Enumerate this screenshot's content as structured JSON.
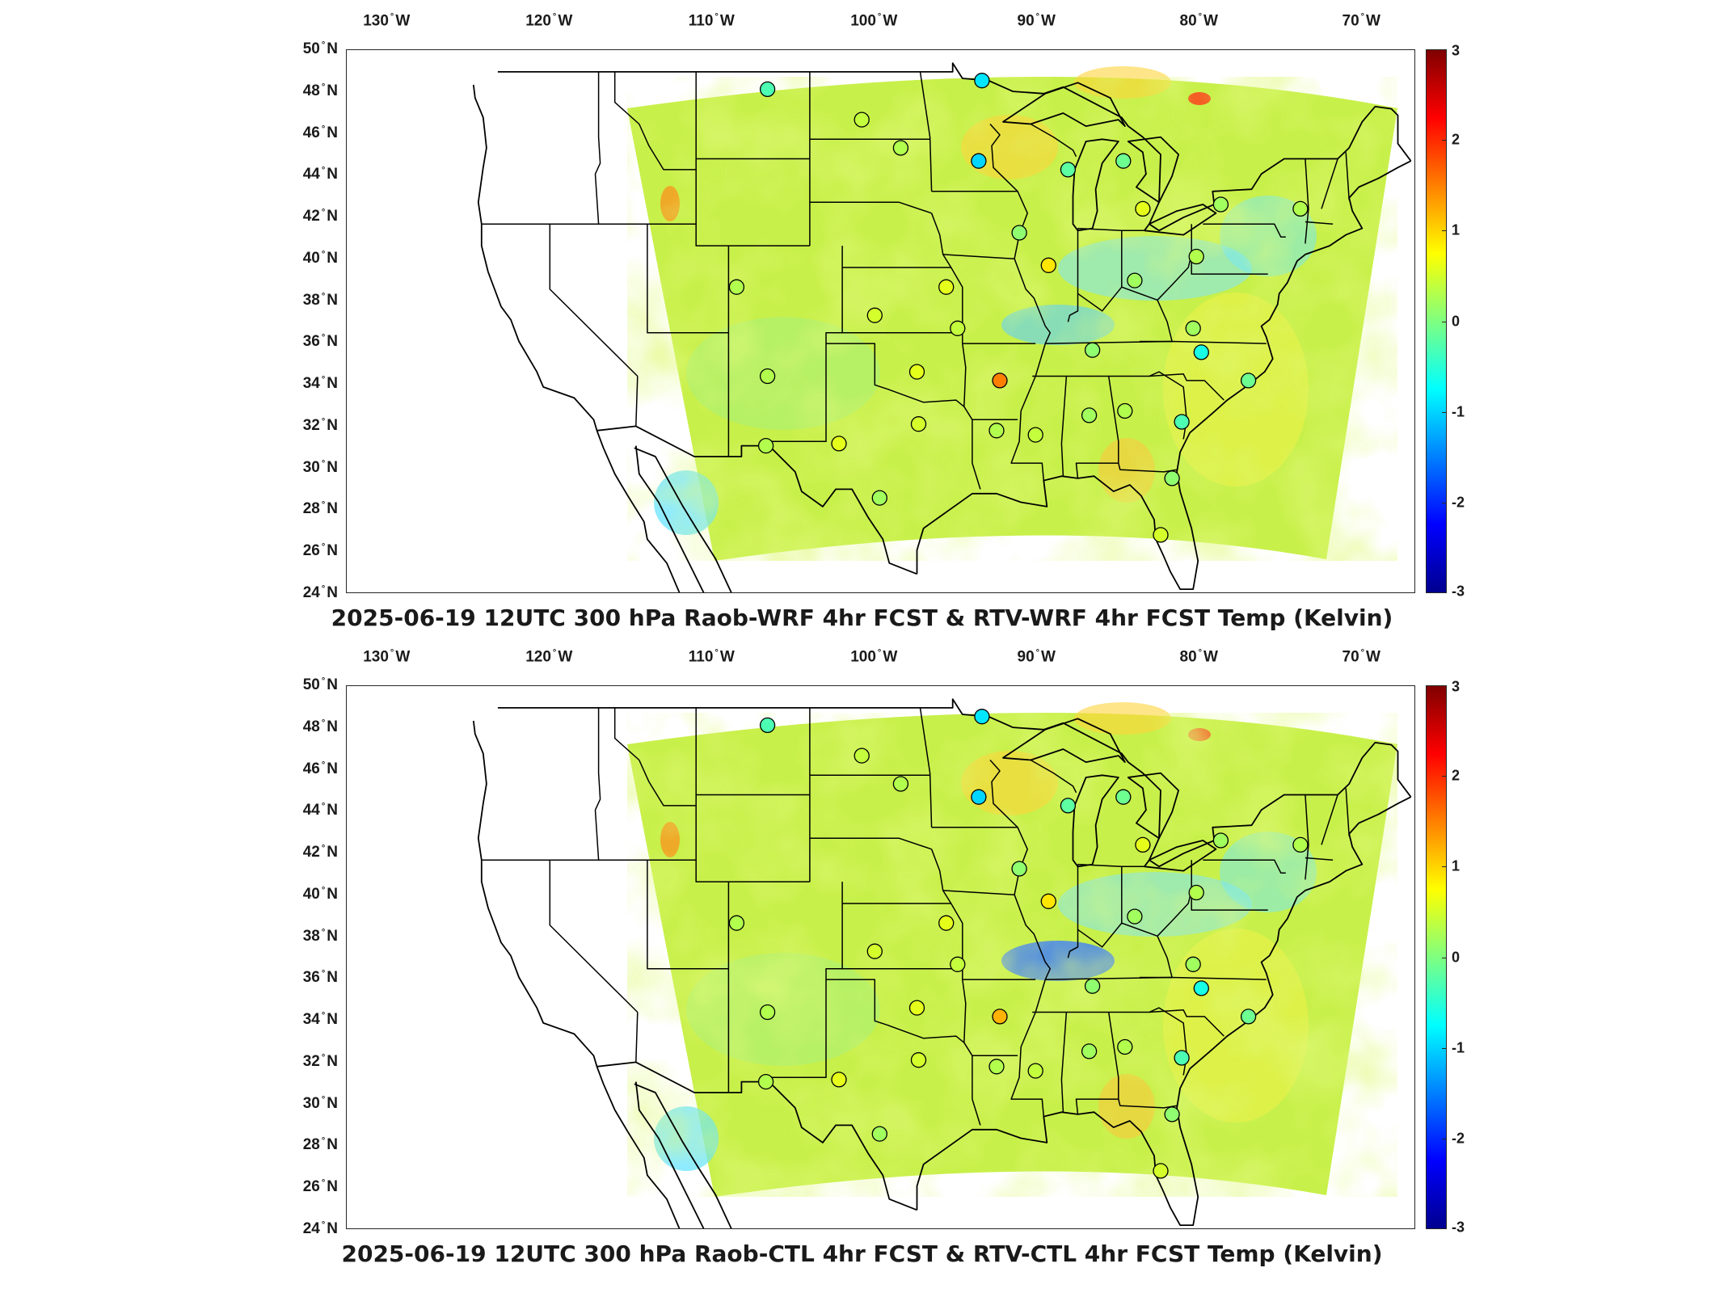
{
  "panels": [
    {
      "title": "2025-06-19 12UTC 300 hPa Raob-WRF 4hr FCST & RTV-WRF 4hr FCST Temp (Kelvin)",
      "lon_labels": [
        {
          "deg": "130",
          "dir": "W"
        },
        {
          "deg": "120",
          "dir": "W"
        },
        {
          "deg": "110",
          "dir": "W"
        },
        {
          "deg": "100",
          "dir": "W"
        },
        {
          "deg": "90",
          "dir": "W"
        },
        {
          "deg": "80",
          "dir": "W"
        },
        {
          "deg": "70",
          "dir": "W"
        }
      ],
      "lat_labels": [
        {
          "deg": "50",
          "dir": "N"
        },
        {
          "deg": "48",
          "dir": "N"
        },
        {
          "deg": "46",
          "dir": "N"
        },
        {
          "deg": "44",
          "dir": "N"
        },
        {
          "deg": "42",
          "dir": "N"
        },
        {
          "deg": "40",
          "dir": "N"
        },
        {
          "deg": "38",
          "dir": "N"
        },
        {
          "deg": "36",
          "dir": "N"
        },
        {
          "deg": "34",
          "dir": "N"
        },
        {
          "deg": "32",
          "dir": "N"
        },
        {
          "deg": "30",
          "dir": "N"
        },
        {
          "deg": "28",
          "dir": "N"
        },
        {
          "deg": "26",
          "dir": "N"
        },
        {
          "deg": "24",
          "dir": "N"
        }
      ],
      "colorbar_ticks": [
        "3",
        "2",
        "1",
        "0",
        "-1",
        "-2",
        "-3"
      ],
      "stations": [
        {
          "lon": -106.6,
          "lat": 48.2,
          "v": -0.3
        },
        {
          "lon": -93.4,
          "lat": 48.6,
          "v": -0.9
        },
        {
          "lon": -100.8,
          "lat": 46.8,
          "v": 0.4
        },
        {
          "lon": -98.4,
          "lat": 45.5,
          "v": 0.3
        },
        {
          "lon": -93.6,
          "lat": 44.9,
          "v": -1.0
        },
        {
          "lon": -88.1,
          "lat": 44.5,
          "v": -0.2
        },
        {
          "lon": -84.7,
          "lat": 44.9,
          "v": -0.1
        },
        {
          "lon": -83.5,
          "lat": 42.7,
          "v": 0.6
        },
        {
          "lon": -78.7,
          "lat": 42.9,
          "v": 0.2
        },
        {
          "lon": -73.8,
          "lat": 42.7,
          "v": 0.3
        },
        {
          "lon": -91.1,
          "lat": 41.6,
          "v": 0.1
        },
        {
          "lon": -89.3,
          "lat": 40.1,
          "v": 0.9
        },
        {
          "lon": -80.2,
          "lat": 40.5,
          "v": 0.3
        },
        {
          "lon": -84.0,
          "lat": 39.4,
          "v": 0.2
        },
        {
          "lon": -95.6,
          "lat": 39.1,
          "v": 0.6
        },
        {
          "lon": -108.5,
          "lat": 39.1,
          "v": 0.3
        },
        {
          "lon": -100.0,
          "lat": 37.8,
          "v": 0.5
        },
        {
          "lon": -94.9,
          "lat": 37.2,
          "v": 0.4
        },
        {
          "lon": -80.4,
          "lat": 37.2,
          "v": 0.2
        },
        {
          "lon": -86.6,
          "lat": 36.2,
          "v": 0.1
        },
        {
          "lon": -79.9,
          "lat": 36.1,
          "v": -0.6
        },
        {
          "lon": -97.4,
          "lat": 35.2,
          "v": 0.6
        },
        {
          "lon": -106.6,
          "lat": 35.0,
          "v": 0.3
        },
        {
          "lon": -92.3,
          "lat": 34.8,
          "v": 1.5
        },
        {
          "lon": -77.0,
          "lat": 34.8,
          "v": -0.1
        },
        {
          "lon": -86.8,
          "lat": 33.2,
          "v": 0.2
        },
        {
          "lon": -84.6,
          "lat": 33.4,
          "v": 0.3
        },
        {
          "lon": -97.3,
          "lat": 32.8,
          "v": 0.5
        },
        {
          "lon": -90.1,
          "lat": 32.3,
          "v": 0.4
        },
        {
          "lon": -102.2,
          "lat": 31.9,
          "v": 0.6
        },
        {
          "lon": -106.7,
          "lat": 31.8,
          "v": 0.3
        },
        {
          "lon": -81.1,
          "lat": 32.9,
          "v": -0.3
        },
        {
          "lon": -92.5,
          "lat": 32.5,
          "v": 0.3
        },
        {
          "lon": -81.7,
          "lat": 30.3,
          "v": 0.1
        },
        {
          "lon": -99.7,
          "lat": 29.4,
          "v": 0.2
        },
        {
          "lon": -82.4,
          "lat": 27.7,
          "v": 0.5
        }
      ]
    },
    {
      "title": "2025-06-19 12UTC 300 hPa Raob-CTL 4hr FCST & RTV-CTL 4hr FCST Temp (Kelvin)",
      "lon_labels": [
        {
          "deg": "130",
          "dir": "W"
        },
        {
          "deg": "120",
          "dir": "W"
        },
        {
          "deg": "110",
          "dir": "W"
        },
        {
          "deg": "100",
          "dir": "W"
        },
        {
          "deg": "90",
          "dir": "W"
        },
        {
          "deg": "80",
          "dir": "W"
        },
        {
          "deg": "70",
          "dir": "W"
        }
      ],
      "lat_labels": [
        {
          "deg": "50",
          "dir": "N"
        },
        {
          "deg": "48",
          "dir": "N"
        },
        {
          "deg": "46",
          "dir": "N"
        },
        {
          "deg": "44",
          "dir": "N"
        },
        {
          "deg": "42",
          "dir": "N"
        },
        {
          "deg": "40",
          "dir": "N"
        },
        {
          "deg": "38",
          "dir": "N"
        },
        {
          "deg": "36",
          "dir": "N"
        },
        {
          "deg": "34",
          "dir": "N"
        },
        {
          "deg": "32",
          "dir": "N"
        },
        {
          "deg": "30",
          "dir": "N"
        },
        {
          "deg": "28",
          "dir": "N"
        },
        {
          "deg": "26",
          "dir": "N"
        },
        {
          "deg": "24",
          "dir": "N"
        }
      ],
      "colorbar_ticks": [
        "3",
        "2",
        "1",
        "0",
        "-1",
        "-2",
        "-3"
      ],
      "stations": [
        {
          "lon": -106.6,
          "lat": 48.2,
          "v": -0.3
        },
        {
          "lon": -93.4,
          "lat": 48.6,
          "v": -0.9
        },
        {
          "lon": -100.8,
          "lat": 46.8,
          "v": 0.4
        },
        {
          "lon": -98.4,
          "lat": 45.5,
          "v": 0.3
        },
        {
          "lon": -93.6,
          "lat": 44.9,
          "v": -1.0
        },
        {
          "lon": -88.1,
          "lat": 44.5,
          "v": -0.2
        },
        {
          "lon": -84.7,
          "lat": 44.9,
          "v": -0.1
        },
        {
          "lon": -83.5,
          "lat": 42.7,
          "v": 0.6
        },
        {
          "lon": -78.7,
          "lat": 42.9,
          "v": 0.2
        },
        {
          "lon": -73.8,
          "lat": 42.7,
          "v": 0.3
        },
        {
          "lon": -91.1,
          "lat": 41.6,
          "v": 0.1
        },
        {
          "lon": -89.3,
          "lat": 40.1,
          "v": 0.9
        },
        {
          "lon": -80.2,
          "lat": 40.5,
          "v": 0.3
        },
        {
          "lon": -84.0,
          "lat": 39.4,
          "v": 0.2
        },
        {
          "lon": -95.6,
          "lat": 39.1,
          "v": 0.6
        },
        {
          "lon": -108.5,
          "lat": 39.1,
          "v": 0.3
        },
        {
          "lon": -100.0,
          "lat": 37.8,
          "v": 0.5
        },
        {
          "lon": -94.9,
          "lat": 37.2,
          "v": 0.4
        },
        {
          "lon": -80.4,
          "lat": 37.2,
          "v": 0.2
        },
        {
          "lon": -86.6,
          "lat": 36.2,
          "v": 0.1
        },
        {
          "lon": -79.9,
          "lat": 36.1,
          "v": -0.6
        },
        {
          "lon": -97.4,
          "lat": 35.2,
          "v": 0.6
        },
        {
          "lon": -106.6,
          "lat": 35.0,
          "v": 0.3
        },
        {
          "lon": -92.3,
          "lat": 34.8,
          "v": 1.2
        },
        {
          "lon": -77.0,
          "lat": 34.8,
          "v": -0.1
        },
        {
          "lon": -86.8,
          "lat": 33.2,
          "v": 0.2
        },
        {
          "lon": -84.6,
          "lat": 33.4,
          "v": 0.3
        },
        {
          "lon": -97.3,
          "lat": 32.8,
          "v": 0.5
        },
        {
          "lon": -90.1,
          "lat": 32.3,
          "v": 0.4
        },
        {
          "lon": -102.2,
          "lat": 31.9,
          "v": 0.6
        },
        {
          "lon": -106.7,
          "lat": 31.8,
          "v": 0.3
        },
        {
          "lon": -81.1,
          "lat": 32.9,
          "v": -0.3
        },
        {
          "lon": -92.5,
          "lat": 32.5,
          "v": 0.3
        },
        {
          "lon": -81.7,
          "lat": 30.3,
          "v": 0.1
        },
        {
          "lon": -99.7,
          "lat": 29.4,
          "v": 0.2
        },
        {
          "lon": -82.4,
          "lat": 27.7,
          "v": 0.5
        }
      ]
    }
  ],
  "colors": {
    "domain_fill": "#c8f04a",
    "border": "#000000",
    "colorbar_min": "#00008f",
    "colorbar_mid": "#7fff80",
    "colorbar_max": "#800000"
  }
}
